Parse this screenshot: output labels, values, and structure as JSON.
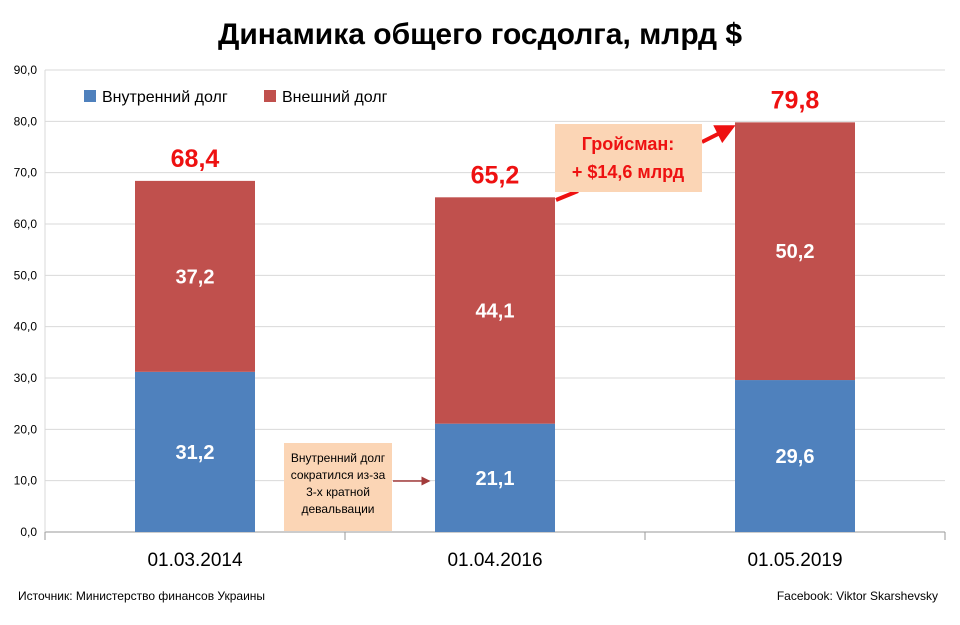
{
  "chart_data": {
    "type": "bar",
    "stacked": true,
    "title": "Динамика общего госдолга, млрд $",
    "categories": [
      "01.03.2014",
      "01.04.2016",
      "01.05.2019"
    ],
    "series": [
      {
        "name": "Внутренний долг",
        "color": "#4f81bd",
        "values": [
          31.2,
          21.1,
          29.6
        ],
        "labels": [
          "31,2",
          "21,1",
          "29,6"
        ]
      },
      {
        "name": "Внешний долг",
        "color": "#c0504d",
        "values": [
          37.2,
          44.1,
          50.2
        ],
        "labels": [
          "37,2",
          "44,1",
          "50,2"
        ]
      }
    ],
    "totals": [
      68.4,
      65.2,
      79.8
    ],
    "total_labels": [
      "68,4",
      "65,2",
      "79,8"
    ],
    "total_color": "#ee1111",
    "ylim": [
      0,
      90
    ],
    "yticks": [
      "0,0",
      "10,0",
      "20,0",
      "30,0",
      "40,0",
      "50,0",
      "60,0",
      "70,0",
      "80,0",
      "90,0"
    ],
    "grid": true,
    "legend_position": "top-left",
    "annotations": {
      "devaluation_note": [
        "Внутренний долг",
        "сократился из-за",
        "3-х кратной",
        "девальвации"
      ],
      "groysman_note": [
        "Гройсман:",
        "+ $14,6 млрд"
      ]
    }
  },
  "footer": {
    "source": "Источник: Министерство финансов Украины",
    "author": "Facebook: Viktor Skarshevsky"
  }
}
